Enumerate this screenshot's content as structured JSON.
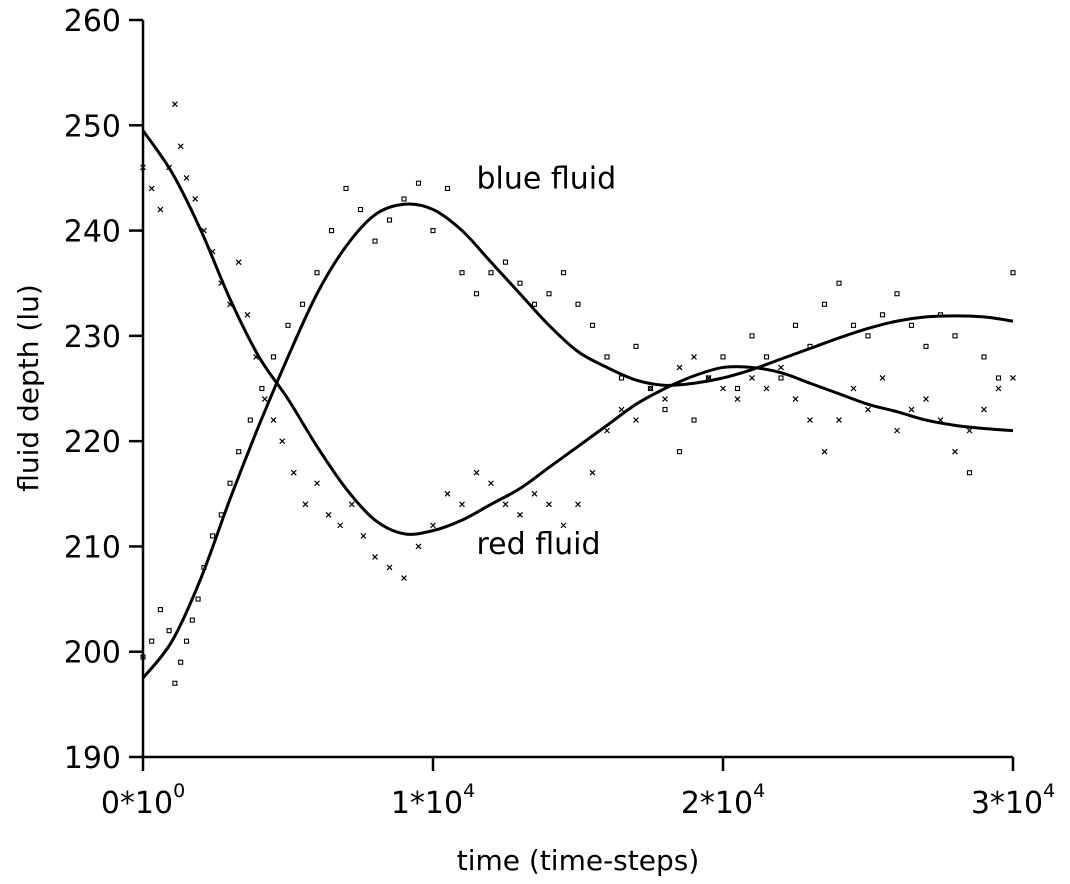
{
  "chart_data": {
    "type": "scatter",
    "title": "",
    "xlabel": "time (time-steps)",
    "ylabel": "fluid depth (lu)",
    "xlim": [
      0,
      30000
    ],
    "ylim": [
      190,
      260
    ],
    "grid": false,
    "x_ticks": [
      {
        "value": 0,
        "mantissa": "0*10",
        "exponent": "0"
      },
      {
        "value": 10000,
        "mantissa": "1*10",
        "exponent": "4"
      },
      {
        "value": 20000,
        "mantissa": "2*10",
        "exponent": "4"
      },
      {
        "value": 30000,
        "mantissa": "3*10",
        "exponent": "4"
      }
    ],
    "y_ticks": [
      "190",
      "200",
      "210",
      "220",
      "230",
      "240",
      "250",
      "260"
    ],
    "series": [
      {
        "name": "blue fluid",
        "marker": "square",
        "fit": [
          [
            0,
            197.5
          ],
          [
            1000,
            201
          ],
          [
            2000,
            207
          ],
          [
            3000,
            214.5
          ],
          [
            4000,
            221.5
          ],
          [
            5000,
            228
          ],
          [
            6000,
            234
          ],
          [
            7000,
            238.5
          ],
          [
            8000,
            241.5
          ],
          [
            9000,
            242.5
          ],
          [
            10000,
            242
          ],
          [
            11000,
            240
          ],
          [
            12000,
            237
          ],
          [
            13000,
            234
          ],
          [
            14000,
            231
          ],
          [
            15000,
            228.5
          ],
          [
            16000,
            227
          ],
          [
            17000,
            225.8
          ],
          [
            18000,
            225.3
          ],
          [
            19000,
            225.5
          ],
          [
            20000,
            226
          ],
          [
            21000,
            226.8
          ],
          [
            22000,
            227.8
          ],
          [
            23000,
            228.8
          ],
          [
            24000,
            229.8
          ],
          [
            25000,
            230.7
          ],
          [
            26000,
            231.4
          ],
          [
            27000,
            231.8
          ],
          [
            28000,
            231.9
          ],
          [
            29000,
            231.8
          ],
          [
            30000,
            231.4
          ]
        ],
        "points": [
          [
            0,
            199.5
          ],
          [
            300,
            201
          ],
          [
            600,
            204
          ],
          [
            900,
            202
          ],
          [
            1100,
            197
          ],
          [
            1300,
            199
          ],
          [
            1500,
            201
          ],
          [
            1700,
            203
          ],
          [
            1900,
            205
          ],
          [
            2100,
            208
          ],
          [
            2400,
            211
          ],
          [
            2700,
            213
          ],
          [
            3000,
            216
          ],
          [
            3300,
            219
          ],
          [
            3700,
            222
          ],
          [
            4100,
            225
          ],
          [
            4500,
            228
          ],
          [
            5000,
            231
          ],
          [
            5500,
            233
          ],
          [
            6000,
            236
          ],
          [
            6500,
            240
          ],
          [
            7000,
            244
          ],
          [
            7500,
            242
          ],
          [
            8000,
            239
          ],
          [
            8500,
            241
          ],
          [
            9000,
            243
          ],
          [
            9500,
            244.5
          ],
          [
            10000,
            240
          ],
          [
            10500,
            244
          ],
          [
            11000,
            236
          ],
          [
            11500,
            234
          ],
          [
            12000,
            236
          ],
          [
            12500,
            237
          ],
          [
            13000,
            235
          ],
          [
            13500,
            233
          ],
          [
            14000,
            234
          ],
          [
            14500,
            236
          ],
          [
            15000,
            233
          ],
          [
            15500,
            231
          ],
          [
            16000,
            228
          ],
          [
            16500,
            226
          ],
          [
            17000,
            229
          ],
          [
            17500,
            225
          ],
          [
            18000,
            223
          ],
          [
            18500,
            219
          ],
          [
            19000,
            222
          ],
          [
            19500,
            226
          ],
          [
            20000,
            228
          ],
          [
            20500,
            225
          ],
          [
            21000,
            230
          ],
          [
            21500,
            228
          ],
          [
            22000,
            226
          ],
          [
            22500,
            231
          ],
          [
            23000,
            229
          ],
          [
            23500,
            233
          ],
          [
            24000,
            235
          ],
          [
            24500,
            231
          ],
          [
            25000,
            230
          ],
          [
            25500,
            232
          ],
          [
            26000,
            234
          ],
          [
            26500,
            231
          ],
          [
            27000,
            229
          ],
          [
            27500,
            232
          ],
          [
            28000,
            230
          ],
          [
            28500,
            217
          ],
          [
            29000,
            228
          ],
          [
            29500,
            226
          ],
          [
            30000,
            236
          ]
        ]
      },
      {
        "name": "red fluid",
        "marker": "cross",
        "fit": [
          [
            0,
            249.5
          ],
          [
            1000,
            245.5
          ],
          [
            2000,
            240
          ],
          [
            3000,
            233.5
          ],
          [
            4000,
            228
          ],
          [
            5000,
            224
          ],
          [
            6000,
            219.5
          ],
          [
            7000,
            215.5
          ],
          [
            8000,
            212.5
          ],
          [
            9000,
            211.2
          ],
          [
            10000,
            211.5
          ],
          [
            11000,
            212.5
          ],
          [
            12000,
            214
          ],
          [
            13000,
            215.5
          ],
          [
            14000,
            217.5
          ],
          [
            15000,
            219.5
          ],
          [
            16000,
            221.5
          ],
          [
            17000,
            223.5
          ],
          [
            18000,
            225
          ],
          [
            19000,
            226.2
          ],
          [
            20000,
            227
          ],
          [
            21000,
            227
          ],
          [
            22000,
            226.5
          ],
          [
            23000,
            225.5
          ],
          [
            24000,
            224.5
          ],
          [
            25000,
            223.5
          ],
          [
            26000,
            222.8
          ],
          [
            27000,
            222
          ],
          [
            28000,
            221.5
          ],
          [
            29000,
            221.2
          ],
          [
            30000,
            221
          ]
        ],
        "points": [
          [
            0,
            246
          ],
          [
            300,
            244
          ],
          [
            600,
            242
          ],
          [
            900,
            246
          ],
          [
            1100,
            252
          ],
          [
            1300,
            248
          ],
          [
            1500,
            245
          ],
          [
            1800,
            243
          ],
          [
            2100,
            240
          ],
          [
            2400,
            238
          ],
          [
            2700,
            235
          ],
          [
            3000,
            233
          ],
          [
            3300,
            237
          ],
          [
            3600,
            232
          ],
          [
            3900,
            228
          ],
          [
            4200,
            224
          ],
          [
            4500,
            222
          ],
          [
            4800,
            220
          ],
          [
            5200,
            217
          ],
          [
            5600,
            214
          ],
          [
            6000,
            216
          ],
          [
            6400,
            213
          ],
          [
            6800,
            212
          ],
          [
            7200,
            214
          ],
          [
            7600,
            211
          ],
          [
            8000,
            209
          ],
          [
            8500,
            208
          ],
          [
            9000,
            207
          ],
          [
            9500,
            210
          ],
          [
            10000,
            212
          ],
          [
            10500,
            215
          ],
          [
            11000,
            214
          ],
          [
            11500,
            217
          ],
          [
            12000,
            216
          ],
          [
            12500,
            214
          ],
          [
            13000,
            213
          ],
          [
            13500,
            215
          ],
          [
            14000,
            214
          ],
          [
            14500,
            212
          ],
          [
            15000,
            214
          ],
          [
            15500,
            217
          ],
          [
            16000,
            221
          ],
          [
            16500,
            223
          ],
          [
            17000,
            222
          ],
          [
            17500,
            225
          ],
          [
            18000,
            224
          ],
          [
            18500,
            227
          ],
          [
            19000,
            228
          ],
          [
            19500,
            226
          ],
          [
            20000,
            225
          ],
          [
            20500,
            224
          ],
          [
            21000,
            226
          ],
          [
            21500,
            225
          ],
          [
            22000,
            227
          ],
          [
            22500,
            224
          ],
          [
            23000,
            222
          ],
          [
            23500,
            219
          ],
          [
            24000,
            222
          ],
          [
            24500,
            225
          ],
          [
            25000,
            223
          ],
          [
            25500,
            226
          ],
          [
            26000,
            221
          ],
          [
            26500,
            223
          ],
          [
            27000,
            224
          ],
          [
            27500,
            222
          ],
          [
            28000,
            219
          ],
          [
            28500,
            221
          ],
          [
            29000,
            223
          ],
          [
            29500,
            225
          ],
          [
            30000,
            226
          ]
        ]
      }
    ],
    "annotations": [
      {
        "text": "blue fluid",
        "x": 11500,
        "y": 244
      },
      {
        "text": "red fluid",
        "x": 11500,
        "y": 209.3
      }
    ]
  }
}
